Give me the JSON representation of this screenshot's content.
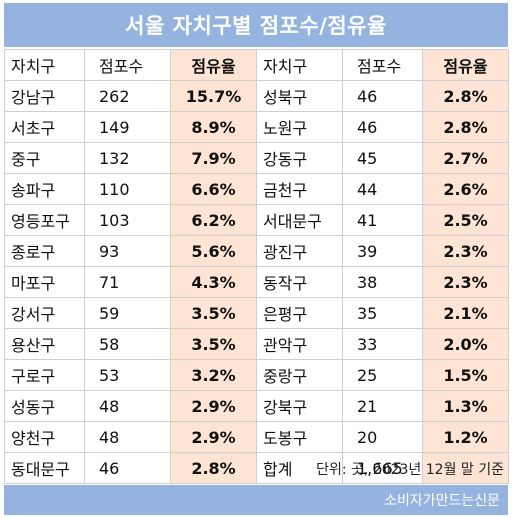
{
  "title": "서울 자치구별 점포수/점유율",
  "headers": {
    "district": "자치구",
    "count": "점포수",
    "share": "점유율"
  },
  "rows": [
    {
      "left": {
        "name": "강남구",
        "count": "262",
        "share": "15.7%"
      },
      "right": {
        "name": "성북구",
        "count": "46",
        "share": "2.8%"
      }
    },
    {
      "left": {
        "name": "서초구",
        "count": "149",
        "share": "8.9%"
      },
      "right": {
        "name": "노원구",
        "count": "46",
        "share": "2.8%"
      }
    },
    {
      "left": {
        "name": "중구",
        "count": "132",
        "share": "7.9%"
      },
      "right": {
        "name": "강동구",
        "count": "45",
        "share": "2.7%"
      }
    },
    {
      "left": {
        "name": "송파구",
        "count": "110",
        "share": "6.6%"
      },
      "right": {
        "name": "금천구",
        "count": "44",
        "share": "2.6%"
      }
    },
    {
      "left": {
        "name": "영등포구",
        "count": "103",
        "share": "6.2%"
      },
      "right": {
        "name": "서대문구",
        "count": "41",
        "share": "2.5%"
      }
    },
    {
      "left": {
        "name": "종로구",
        "count": "93",
        "share": "5.6%"
      },
      "right": {
        "name": "광진구",
        "count": "39",
        "share": "2.3%"
      }
    },
    {
      "left": {
        "name": "마포구",
        "count": "71",
        "share": "4.3%"
      },
      "right": {
        "name": "동작구",
        "count": "38",
        "share": "2.3%"
      }
    },
    {
      "left": {
        "name": "강서구",
        "count": "59",
        "share": "3.5%"
      },
      "right": {
        "name": "은평구",
        "count": "35",
        "share": "2.1%"
      }
    },
    {
      "left": {
        "name": "용산구",
        "count": "58",
        "share": "3.5%"
      },
      "right": {
        "name": "관악구",
        "count": "33",
        "share": "2.0%"
      }
    },
    {
      "left": {
        "name": "구로구",
        "count": "53",
        "share": "3.2%"
      },
      "right": {
        "name": "중랑구",
        "count": "25",
        "share": "1.5%"
      }
    },
    {
      "left": {
        "name": "성동구",
        "count": "48",
        "share": "2.9%"
      },
      "right": {
        "name": "강북구",
        "count": "21",
        "share": "1.3%"
      }
    },
    {
      "left": {
        "name": "양천구",
        "count": "48",
        "share": "2.9%"
      },
      "right": {
        "name": "도봉구",
        "count": "20",
        "share": "1.2%"
      }
    },
    {
      "left": {
        "name": "동대문구",
        "count": "46",
        "share": "2.8%"
      },
      "right": {
        "name": "합계",
        "count": "1,665",
        "share": ""
      }
    }
  ],
  "footnote": "단위: 곳, 2023년 12월 말 기준",
  "source": "소비자가만드는신문",
  "colors": {
    "header_bar": "#94b3df",
    "share_highlight": "#fde4d4"
  }
}
